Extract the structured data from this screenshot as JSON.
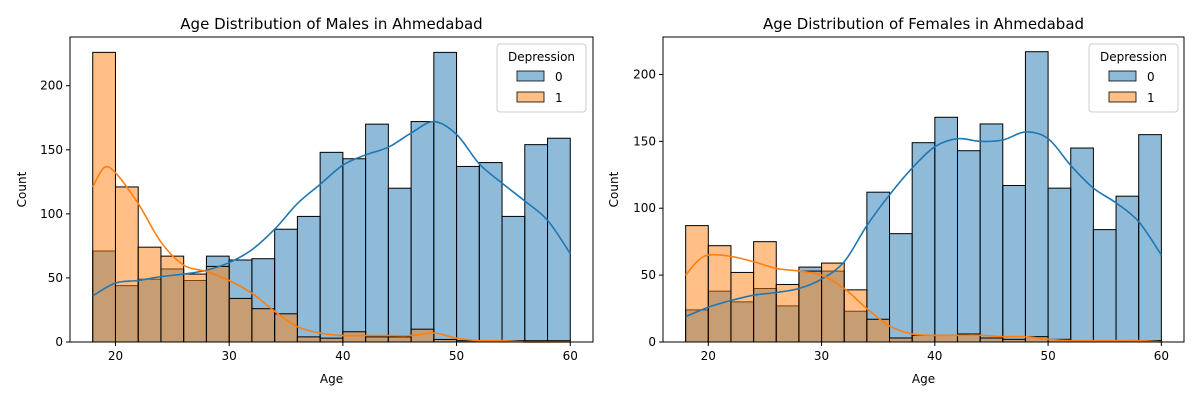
{
  "colors": {
    "series_0_fill": "#1f77b4",
    "series_1_fill": "#ff7f0e",
    "bar_edge": "#000000",
    "legend_border": "#cccccc"
  },
  "chart_data": [
    {
      "type": "bar",
      "subtype": "stacked-histogram-with-kde",
      "title": "Age Distribution of Males in Ahmedabad",
      "xlabel": "Age",
      "ylabel": "Count",
      "xlim": [
        16,
        62
      ],
      "ylim": [
        0,
        238
      ],
      "xticks": [
        20,
        30,
        40,
        50,
        60
      ],
      "yticks": [
        0,
        50,
        100,
        150,
        200
      ],
      "grid": false,
      "bin_edges": [
        18,
        20,
        22,
        24,
        26,
        28,
        30,
        32,
        34,
        36,
        38,
        40,
        42,
        44,
        46,
        48,
        50,
        52,
        54,
        56,
        58,
        60
      ],
      "legend": {
        "title": "Depression",
        "placement": "top-right"
      },
      "series": [
        {
          "name": "0",
          "color": "#1f77b4",
          "values": [
            71,
            44,
            49,
            57,
            48,
            67,
            64,
            65,
            88,
            98,
            148,
            143,
            170,
            120,
            172,
            226,
            137,
            140,
            98,
            154,
            159
          ],
          "kde": {
            "x": [
              18,
              20,
              22,
              24,
              26,
              28,
              30,
              32,
              34,
              36,
              38,
              40,
              42,
              44,
              46,
              48,
              50,
              52,
              54,
              56,
              58,
              60
            ],
            "y": [
              36,
              46,
              48,
              51,
              53,
              56,
              62,
              72,
              88,
              108,
              123,
              138,
              146,
              152,
              163,
              172,
              162,
              139,
              124,
              110,
              95,
              69
            ]
          }
        },
        {
          "name": "1",
          "color": "#ff7f0e",
          "values": [
            226,
            121,
            74,
            67,
            53,
            59,
            34,
            26,
            22,
            4,
            3,
            8,
            4,
            4,
            10,
            2,
            1,
            1,
            1,
            1,
            1
          ],
          "kde": {
            "x": [
              18,
              19,
              20,
              22,
              24,
              26,
              28,
              30,
              32,
              34,
              36,
              38,
              40,
              42,
              44,
              46,
              48,
              50,
              52,
              54,
              56,
              58,
              60
            ],
            "y": [
              121,
              136,
              132,
              108,
              78,
              60,
              55,
              48,
              38,
              24,
              12,
              7,
              5,
              5,
              5,
              5,
              7,
              3,
              1,
              1,
              0,
              0,
              0
            ]
          }
        }
      ]
    },
    {
      "type": "bar",
      "subtype": "stacked-histogram-with-kde",
      "title": "Age Distribution of Females in Ahmedabad",
      "xlabel": "Age",
      "ylabel": "Count",
      "xlim": [
        16,
        62
      ],
      "ylim": [
        0,
        228
      ],
      "xticks": [
        20,
        30,
        40,
        50,
        60
      ],
      "yticks": [
        0,
        50,
        100,
        150,
        200
      ],
      "grid": false,
      "bin_edges": [
        18,
        20,
        22,
        24,
        26,
        28,
        30,
        32,
        34,
        36,
        38,
        40,
        42,
        44,
        46,
        48,
        50,
        52,
        54,
        56,
        58,
        60
      ],
      "legend": {
        "title": "Depression",
        "placement": "top-right"
      },
      "series": [
        {
          "name": "0",
          "color": "#1f77b4",
          "values": [
            24,
            38,
            30,
            40,
            27,
            56,
            53,
            23,
            112,
            81,
            149,
            168,
            143,
            163,
            117,
            217,
            115,
            145,
            84,
            109,
            155
          ],
          "kde": {
            "x": [
              18,
              20,
              22,
              24,
              26,
              28,
              30,
              32,
              34,
              36,
              38,
              40,
              42,
              44,
              46,
              48,
              50,
              52,
              54,
              56,
              58,
              60
            ],
            "y": [
              19,
              26,
              31,
              35,
              37,
              40,
              47,
              60,
              87,
              110,
              130,
              146,
              152,
              150,
              151,
              157,
              152,
              132,
              115,
              104,
              90,
              65
            ]
          }
        },
        {
          "name": "1",
          "color": "#ff7f0e",
          "values": [
            87,
            72,
            52,
            75,
            43,
            53,
            59,
            39,
            17,
            3,
            5,
            5,
            6,
            3,
            2,
            4,
            2,
            1,
            1,
            1,
            1
          ],
          "kde": {
            "x": [
              18,
              19,
              20,
              22,
              24,
              26,
              28,
              30,
              32,
              34,
              36,
              38,
              40,
              42,
              44,
              46,
              48,
              50,
              52,
              54,
              56,
              58,
              60
            ],
            "y": [
              50,
              60,
              65,
              64,
              60,
              55,
              53,
              50,
              40,
              25,
              12,
              6,
              5,
              5,
              5,
              4,
              4,
              2,
              1,
              1,
              1,
              1,
              0
            ]
          }
        }
      ]
    }
  ]
}
